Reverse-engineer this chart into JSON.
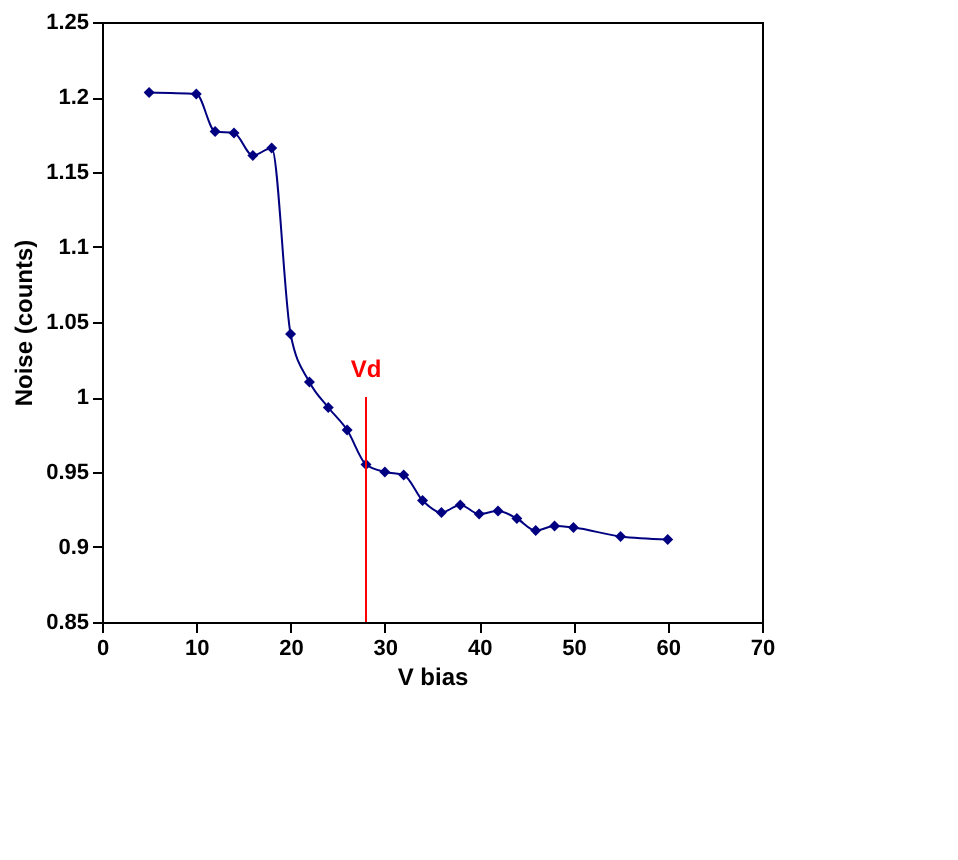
{
  "chart_data": {
    "type": "line",
    "xlabel": "V bias",
    "ylabel": "Noise (counts)",
    "x": [
      5,
      10,
      12,
      14,
      16,
      18,
      20,
      22,
      24,
      26,
      28,
      30,
      32,
      34,
      36,
      38,
      40,
      42,
      44,
      46,
      48,
      50,
      55,
      60
    ],
    "series": [
      {
        "color": "#000080",
        "values": [
          1.203,
          1.202,
          1.177,
          1.176,
          1.161,
          1.166,
          1.042,
          1.01,
          0.993,
          0.978,
          0.955,
          0.95,
          0.948,
          0.931,
          0.923,
          0.928,
          0.922,
          0.924,
          0.919,
          0.911,
          0.914,
          0.913,
          0.907,
          0.905
        ]
      }
    ],
    "xlim": [
      0,
      70
    ],
    "xticks": [
      0,
      10,
      20,
      30,
      40,
      50,
      60,
      70
    ],
    "ylim": [
      0.85,
      1.25
    ],
    "yticks": [
      0.85,
      0.9,
      0.95,
      1,
      1.05,
      1.1,
      1.15,
      1.2,
      1.25
    ],
    "ref_lines": [
      {
        "axis": "x",
        "value": 28,
        "label": "Vd",
        "color": "#ff0000"
      }
    ],
    "marker": "diamond",
    "line_style": "solid",
    "grid": false
  }
}
